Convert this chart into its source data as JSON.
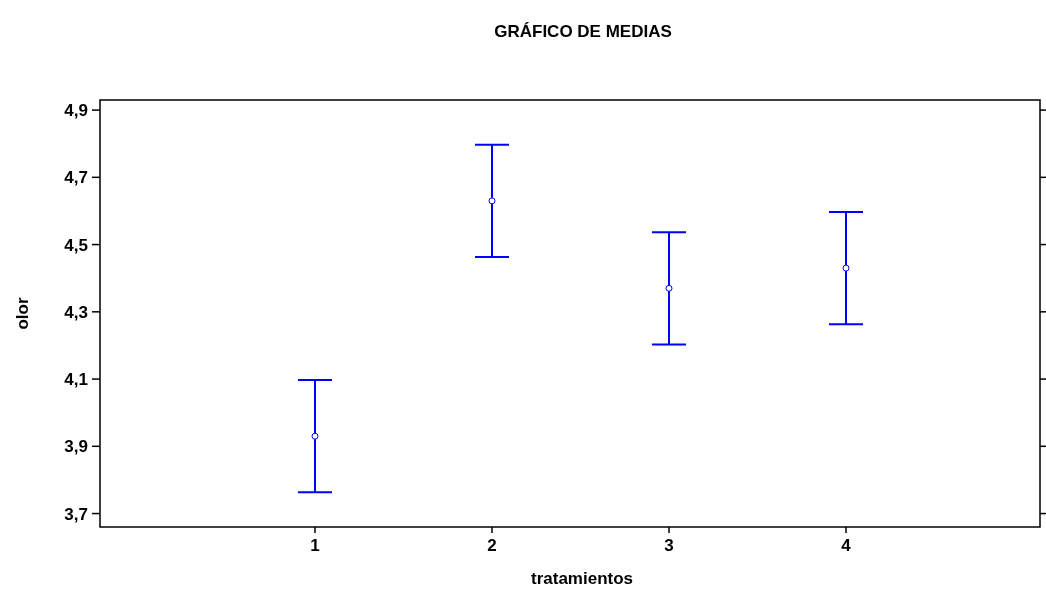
{
  "chart_data": {
    "type": "scatter",
    "title": "GRÁFICO DE MEDIAS",
    "xlabel": "tratamientos",
    "ylabel": "olor",
    "categories": [
      "1",
      "2",
      "3",
      "4"
    ],
    "series": [
      {
        "color": "#0000ff",
        "values": [
          3.93,
          4.63,
          4.37,
          4.43
        ],
        "errors": [
          0.167,
          0.167,
          0.167,
          0.167
        ]
      }
    ],
    "ylim": [
      3.66,
      4.93
    ],
    "yticks": [
      {
        "value": 3.7,
        "label": "3,7"
      },
      {
        "value": 3.9,
        "label": "3,9"
      },
      {
        "value": 4.1,
        "label": "4,1"
      },
      {
        "value": 4.3,
        "label": "4,3"
      },
      {
        "value": 4.5,
        "label": "4,5"
      },
      {
        "value": 4.7,
        "label": "4,7"
      },
      {
        "value": 4.9,
        "label": "4,9"
      }
    ],
    "marker": "circle",
    "grid": false
  }
}
